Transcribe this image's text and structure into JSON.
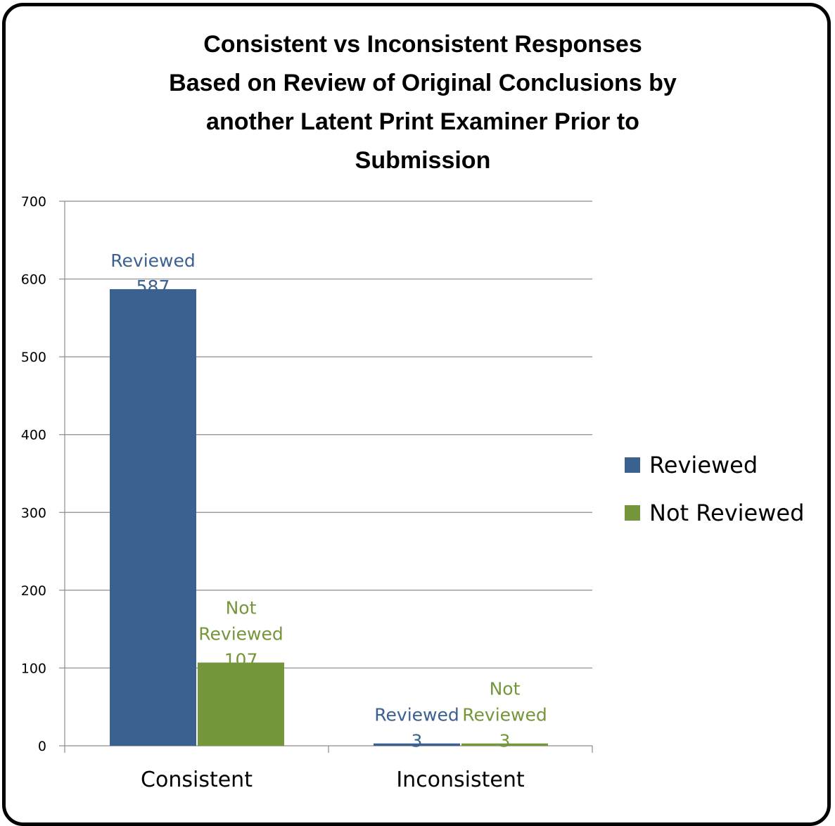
{
  "chart_data": {
    "type": "bar",
    "title_lines": [
      "Consistent vs Inconsistent Responses",
      "Based on Review of Original Conclusions by",
      "another Latent Print Examiner Prior to",
      "Submission"
    ],
    "categories": [
      "Consistent",
      "Inconsistent"
    ],
    "series": [
      {
        "name": "Reviewed",
        "label_lines": [
          "Reviewed"
        ],
        "color": "#3A6190",
        "values": [
          587,
          3
        ]
      },
      {
        "name": "Not Reviewed",
        "label_lines": [
          "Not",
          "Reviewed"
        ],
        "color": "#76963C",
        "values": [
          107,
          3
        ]
      }
    ],
    "ylim": [
      0,
      700
    ],
    "yticks": [
      0,
      100,
      200,
      300,
      400,
      500,
      600,
      700
    ],
    "grid": true,
    "legend": "right",
    "xlabel": "",
    "ylabel": ""
  }
}
